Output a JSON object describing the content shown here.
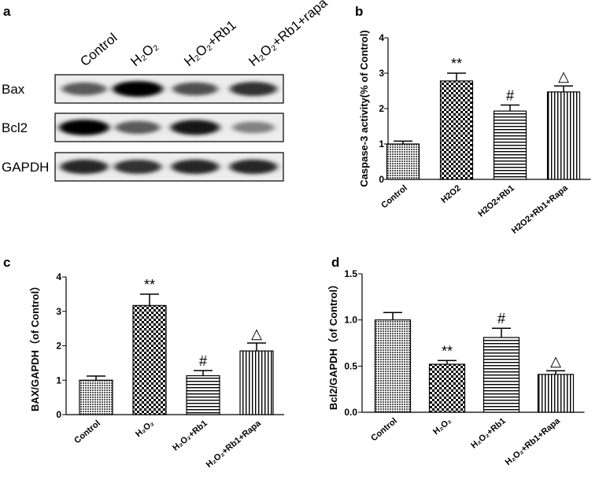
{
  "panels": {
    "a": "a",
    "b": "b",
    "c": "c",
    "d": "d"
  },
  "blot": {
    "lanes": [
      "Control",
      "H₂O₂",
      "H₂O₂+Rb1",
      "H₂O₂+Rb1+rapa"
    ],
    "rows": [
      {
        "name": "Bax",
        "intensity": [
          0.55,
          1.0,
          0.6,
          0.75
        ]
      },
      {
        "name": "Bcl2",
        "intensity": [
          1.0,
          0.55,
          0.9,
          0.35
        ]
      },
      {
        "name": "GAPDH",
        "intensity": [
          0.8,
          0.75,
          0.8,
          0.8
        ]
      }
    ]
  },
  "chart_data": [
    {
      "panel": "b",
      "type": "bar",
      "categories": [
        "Control",
        "H2O2",
        "H2O2+Rb1",
        "H2O2+Rb1+Rapa"
      ],
      "values": [
        1.0,
        2.78,
        1.93,
        2.47
      ],
      "errors": [
        0.08,
        0.22,
        0.17,
        0.17
      ],
      "annotations": [
        "",
        "**",
        "#",
        "△"
      ],
      "ylabel": "Caspase-3 activity(% of Control)",
      "ylim": [
        0,
        4
      ],
      "yticks": [
        "0",
        "1",
        "2",
        "3",
        "4"
      ],
      "patterns": [
        "dots",
        "checker",
        "hlines",
        "vlines"
      ]
    },
    {
      "panel": "c",
      "type": "bar",
      "categories": [
        "Control",
        "H₂O₂",
        "H₂O₂+Rb1",
        "H₂O₂+Rb1+Rapa"
      ],
      "values": [
        1.0,
        3.17,
        1.13,
        1.85
      ],
      "errors": [
        0.12,
        0.33,
        0.15,
        0.23
      ],
      "annotations": [
        "",
        "**",
        "#",
        "△"
      ],
      "ylabel": "BAX/GAPDH（of Control）",
      "ylim": [
        0,
        4
      ],
      "yticks": [
        "0",
        "1",
        "2",
        "3",
        "4"
      ],
      "patterns": [
        "dots",
        "checker",
        "hlines",
        "vlines"
      ]
    },
    {
      "panel": "d",
      "type": "bar",
      "categories": [
        "Control",
        "H₂O₂",
        "H₂O₂+Rb1",
        "H₂O₂+Rb1+Rapa"
      ],
      "values": [
        1.0,
        0.52,
        0.81,
        0.41
      ],
      "errors": [
        0.08,
        0.04,
        0.1,
        0.04
      ],
      "annotations": [
        "",
        "**",
        "#",
        "△"
      ],
      "ylabel": "Bcl2/GAPDH（of Control）",
      "ylim": [
        0,
        1.5
      ],
      "yticks": [
        "0.0",
        "0.5",
        "1.0",
        "1.5"
      ],
      "patterns": [
        "dots",
        "checker",
        "hlines",
        "vlines"
      ]
    }
  ]
}
